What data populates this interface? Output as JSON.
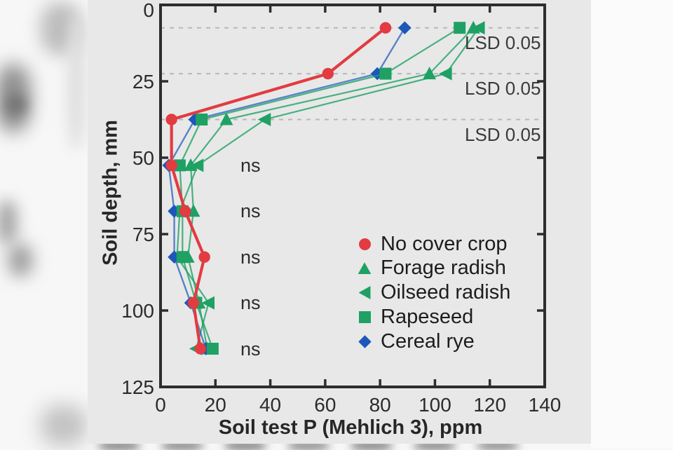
{
  "figure": {
    "x_axis_title": "Soil test P (Mehlich 3), ppm",
    "y_axis_title": "Soil depth, mm"
  },
  "annotations": {
    "lsd_labels": [
      "LSD 0.05",
      "LSD 0.05",
      "LSD 0.05"
    ],
    "ns_labels": [
      "ns",
      "ns",
      "ns",
      "ns",
      "ns"
    ]
  },
  "legend": {
    "items": [
      {
        "label": "No cover crop",
        "marker": "circle",
        "color": "#e23b41"
      },
      {
        "label": "Forage radish",
        "marker": "triangle-up",
        "color": "#1fa164"
      },
      {
        "label": "Oilseed radish",
        "marker": "triangle-left",
        "color": "#1fa164"
      },
      {
        "label": "Rapeseed",
        "marker": "square",
        "color": "#1fa164"
      },
      {
        "label": "Cereal rye",
        "marker": "diamond",
        "color": "#1d57b8"
      }
    ]
  },
  "chart_data": {
    "type": "line",
    "title": "",
    "xlabel": "Soil test P (Mehlich 3), ppm",
    "ylabel": "Soil depth, mm",
    "xlim": [
      0,
      140
    ],
    "ylim": [
      0,
      125
    ],
    "x_ticks": [
      0,
      20,
      40,
      60,
      80,
      100,
      120,
      140
    ],
    "y_ticks": [
      0,
      25,
      50,
      75,
      100,
      125
    ],
    "y_inverted": true,
    "grid": "none",
    "legend_position": "center-right inside plot",
    "depths_mm": [
      7.5,
      22.5,
      37.5,
      52.5,
      67.5,
      82.5,
      97.5,
      112.5
    ],
    "lsd_line_depths": [
      7.5,
      22.5,
      37.5
    ],
    "ns_depths": [
      52.5,
      67.5,
      82.5,
      97.5,
      112.5
    ],
    "series": [
      {
        "name": "No cover crop",
        "marker": "circle",
        "color": "#e23b41",
        "line_width": 4.2,
        "line_opacity": 1,
        "values": [
          82,
          61,
          4,
          4,
          9,
          16,
          12,
          14.5
        ]
      },
      {
        "name": "Forage radish",
        "marker": "triangle-up",
        "color": "#1fa164",
        "line_width": 2.2,
        "line_opacity": 0.8,
        "values": [
          114,
          98,
          24,
          11,
          12,
          10,
          14,
          17
        ]
      },
      {
        "name": "Oilseed radish",
        "marker": "triangle-left",
        "color": "#1fa164",
        "line_width": 2.2,
        "line_opacity": 0.8,
        "values": [
          116,
          104,
          38,
          13.5,
          7,
          6,
          17.5,
          13
        ]
      },
      {
        "name": "Rapeseed",
        "marker": "square",
        "color": "#1fa164",
        "line_width": 2.2,
        "line_opacity": 0.8,
        "values": [
          109,
          82,
          15,
          7,
          8,
          8,
          13,
          19
        ]
      },
      {
        "name": "Cereal rye",
        "marker": "diamond",
        "color": "#1d57b8",
        "line_width": 2.4,
        "line_opacity": 0.7,
        "values": [
          89,
          79,
          12.5,
          3,
          5,
          5,
          11,
          16.5
        ]
      }
    ],
    "colors": {
      "axis": "#2d2d2d",
      "tick_label": "#2b2b2b",
      "dashed_line": "#b7b7b7",
      "panel_background": "#e8e8e8",
      "page_background": "#f7f7f7"
    }
  }
}
